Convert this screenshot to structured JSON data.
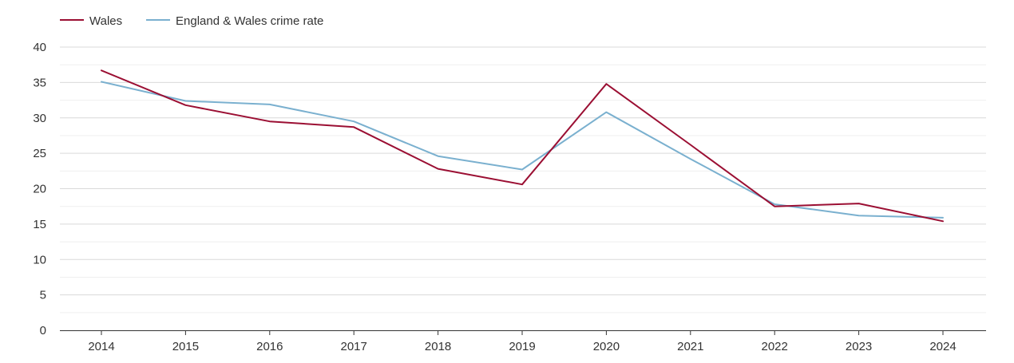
{
  "chart_data": {
    "type": "line",
    "title": "",
    "xlabel": "",
    "ylabel": "",
    "categories": [
      "2014",
      "2015",
      "2016",
      "2017",
      "2018",
      "2019",
      "2020",
      "2021",
      "2022",
      "2023",
      "2024"
    ],
    "series": [
      {
        "name": "Wales",
        "color": "#9b0f33",
        "values": [
          36.7,
          31.8,
          29.5,
          28.7,
          22.8,
          20.6,
          34.8,
          26.2,
          17.5,
          17.9,
          15.4
        ]
      },
      {
        "name": "England & Wales crime rate",
        "color": "#7ab0cf",
        "values": [
          35.1,
          32.4,
          31.9,
          29.5,
          24.6,
          22.7,
          30.8,
          24.2,
          17.8,
          16.2,
          15.9
        ]
      }
    ],
    "ylim": [
      0,
      40
    ],
    "yticks": [
      0,
      5,
      10,
      15,
      20,
      25,
      30,
      35,
      40
    ],
    "grid": true,
    "legend_position": "top-left"
  }
}
